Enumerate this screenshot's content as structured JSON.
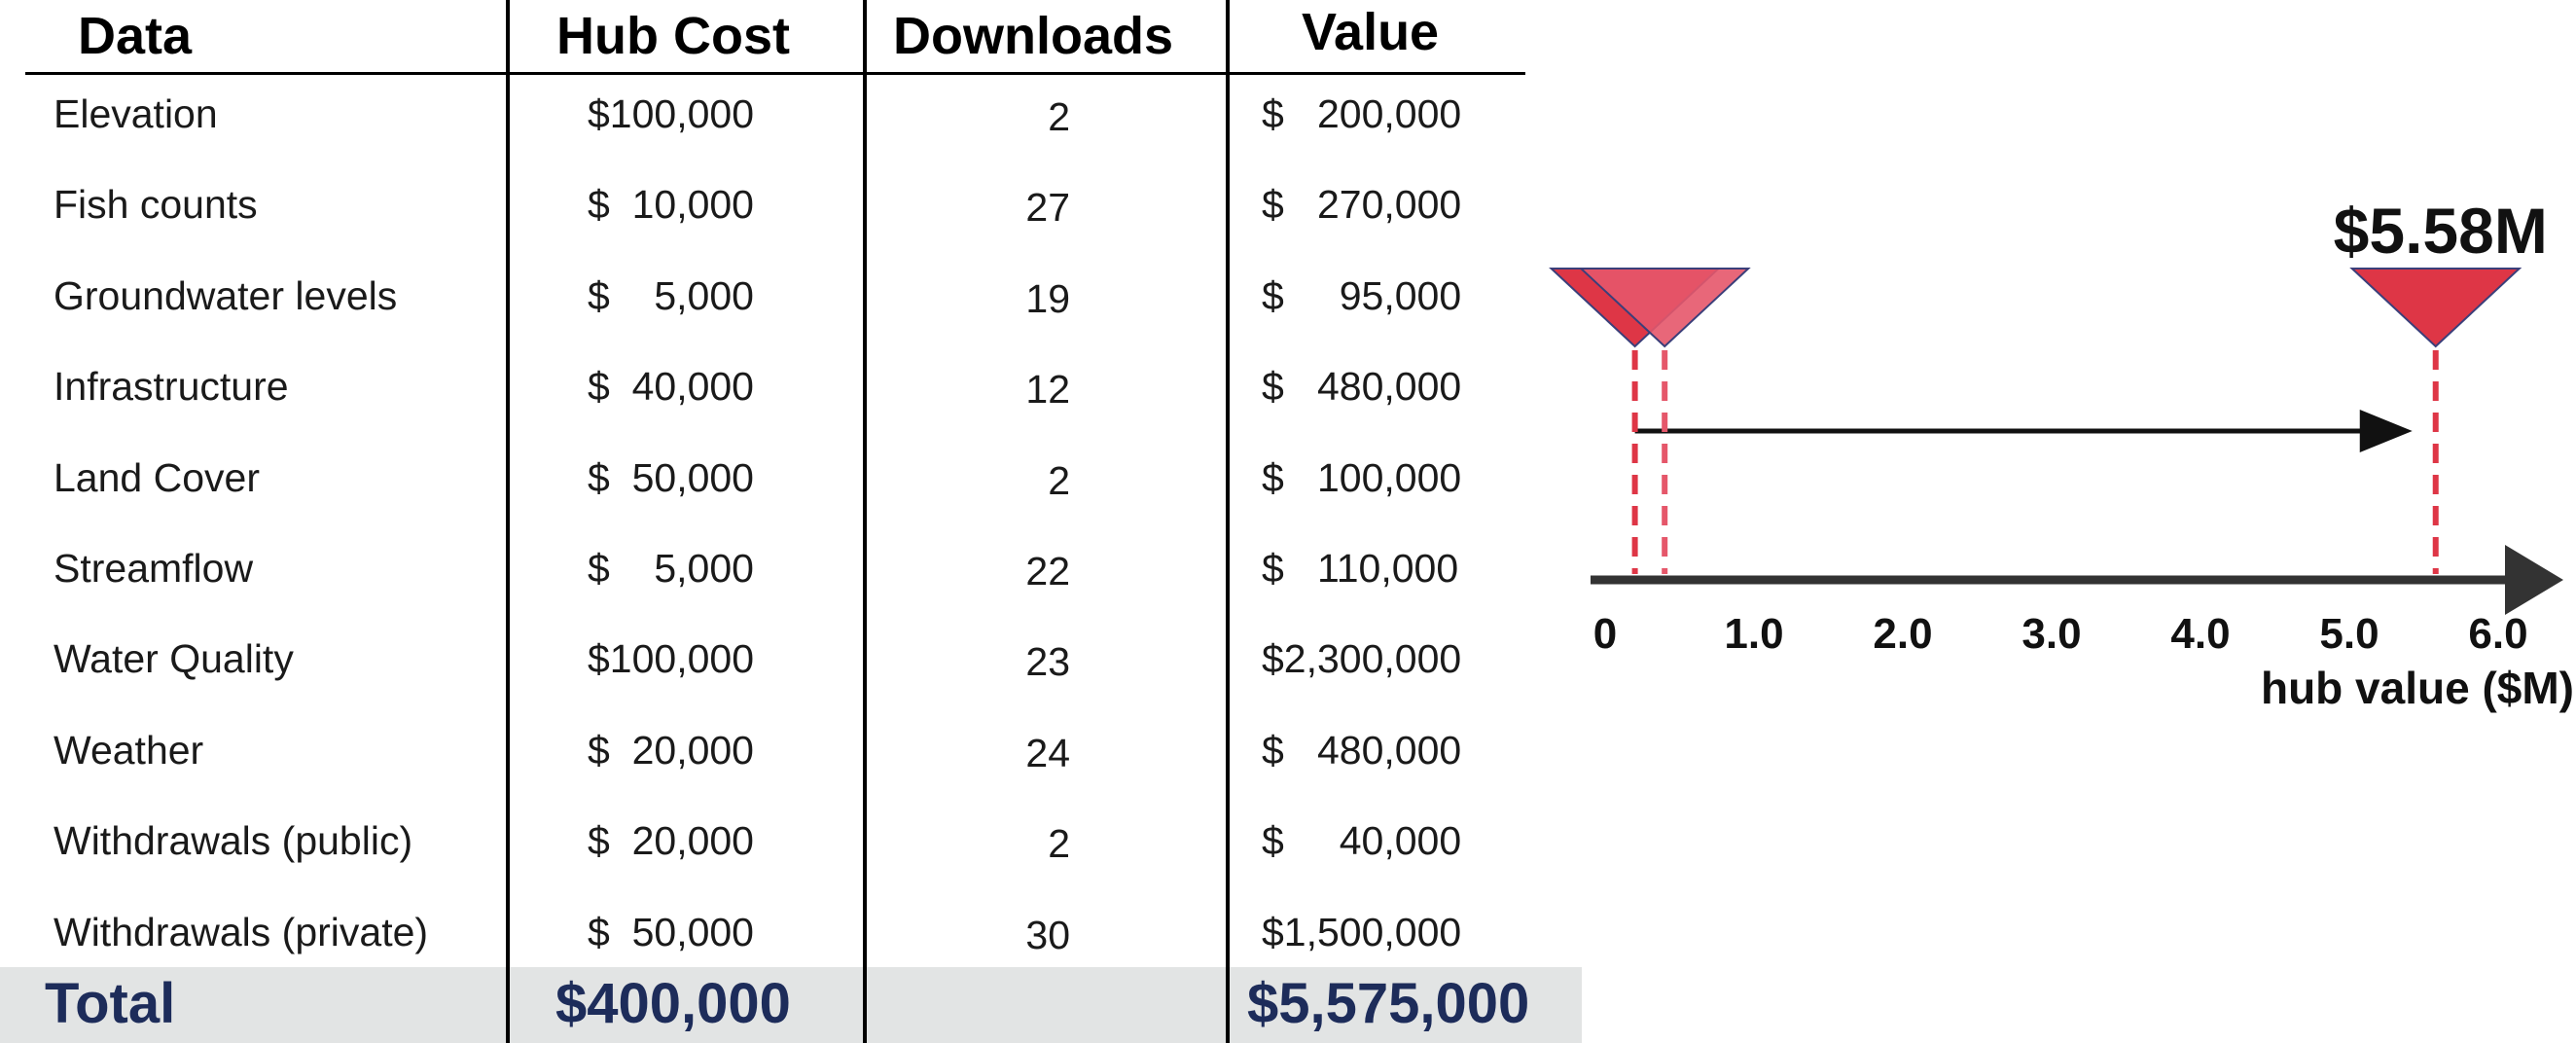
{
  "table": {
    "headers": {
      "data": "Data",
      "hub_cost": "Hub Cost",
      "downloads": "Downloads",
      "value": "Value"
    },
    "rows": [
      {
        "name": "Elevation",
        "hub_cost": "$100,000",
        "downloads": "2",
        "value": "$   200,000"
      },
      {
        "name": "Fish counts",
        "hub_cost": "$  10,000",
        "downloads": "27",
        "value": "$   270,000"
      },
      {
        "name": "Groundwater levels",
        "hub_cost": "$    5,000",
        "downloads": "19",
        "value": "$     95,000"
      },
      {
        "name": "Infrastructure",
        "hub_cost": "$  40,000",
        "downloads": "12",
        "value": "$   480,000"
      },
      {
        "name": "Land Cover",
        "hub_cost": "$  50,000",
        "downloads": "2",
        "value": "$   100,000"
      },
      {
        "name": "Streamflow",
        "hub_cost": "$    5,000",
        "downloads": "22",
        "value": "$   110,000"
      },
      {
        "name": "Water Quality",
        "hub_cost": "$100,000",
        "downloads": "23",
        "value": "$2,300,000"
      },
      {
        "name": "Weather",
        "hub_cost": "$  20,000",
        "downloads": "24",
        "value": "$   480,000"
      },
      {
        "name": "Withdrawals (public)",
        "hub_cost": "$  20,000",
        "downloads": "2",
        "value": "$     40,000"
      },
      {
        "name": "Withdrawals (private)",
        "hub_cost": "$  50,000",
        "downloads": "30",
        "value": "$1,500,000"
      }
    ],
    "total": {
      "label": "Total",
      "hub_cost": "$400,000",
      "value": "$5,575,000"
    }
  },
  "chart_data": {
    "type": "scatter",
    "title": "",
    "xlabel": "hub value ($M)",
    "xlim": [
      0,
      6.0
    ],
    "ticks": [
      "0",
      "1.0",
      "2.0",
      "3.0",
      "4.0",
      "5.0",
      "6.0"
    ],
    "markers": [
      {
        "x": 0.2,
        "label": ""
      },
      {
        "x": 0.4,
        "label": ""
      },
      {
        "x": 5.58,
        "label": "$5.58M"
      }
    ],
    "arrow": {
      "from": 0.2,
      "to": 5.58
    },
    "colors": {
      "marker": "#de3646",
      "marker_light": "#e5576a",
      "marker_outline": "#3b3f7a",
      "axis": "#333333"
    }
  }
}
